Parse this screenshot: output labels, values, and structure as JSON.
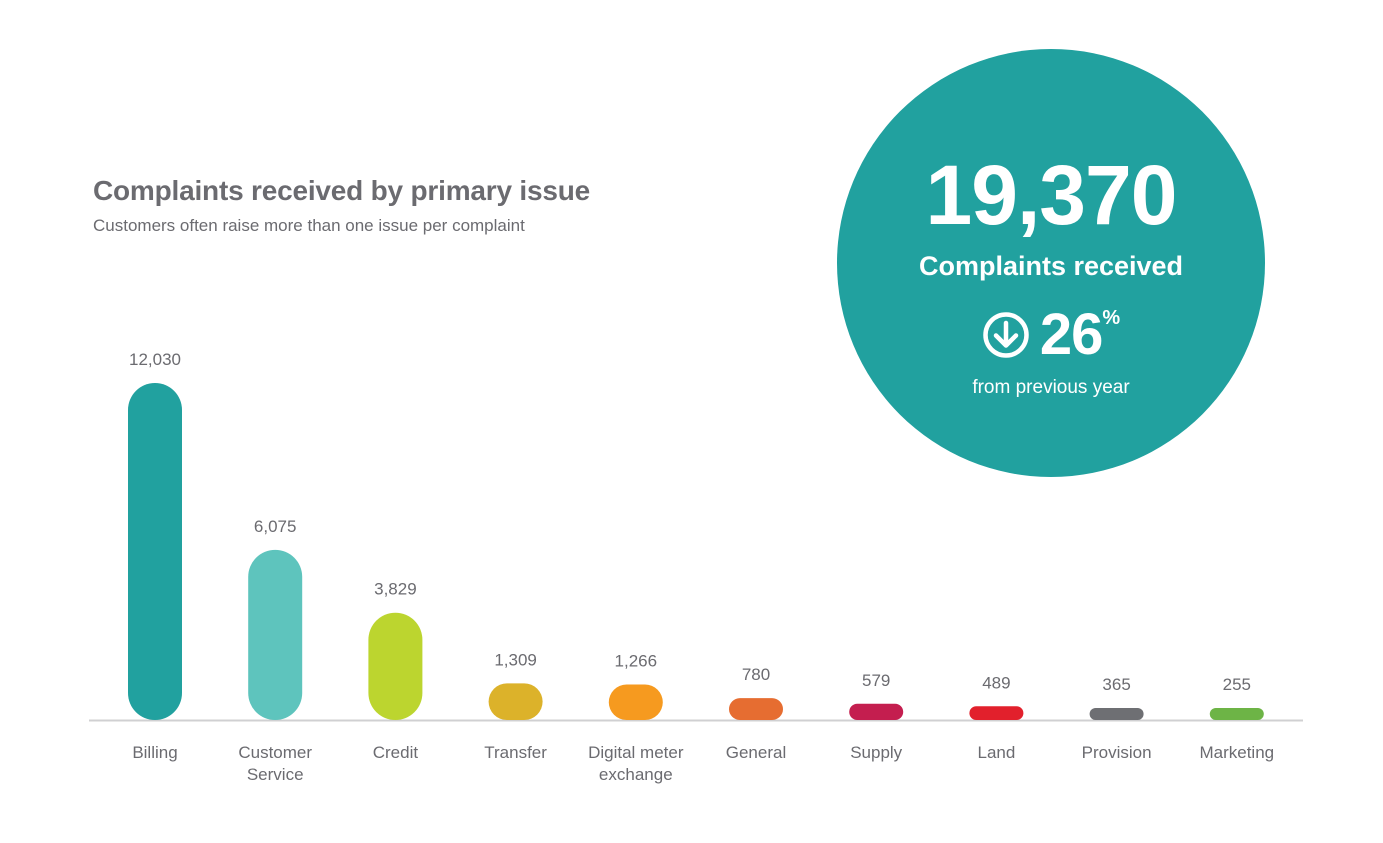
{
  "summary": {
    "total": "19,370",
    "total_label": "Complaints received",
    "change_value": "26",
    "change_unit": "%",
    "change_caption": "from previous year",
    "accent_color": "#21a19f",
    "direction_icon": "arrow-down-circle-icon"
  },
  "chart_data": {
    "type": "bar",
    "title": "Complaints received by primary issue",
    "subtitle": "Customers often raise more than one issue per complaint",
    "categories": [
      [
        "Billing"
      ],
      [
        "Customer",
        "Service"
      ],
      [
        "Credit"
      ],
      [
        "Transfer"
      ],
      [
        "Digital meter",
        "exchange"
      ],
      [
        "General"
      ],
      [
        "Supply"
      ],
      [
        "Land"
      ],
      [
        "Provision"
      ],
      [
        "Marketing"
      ]
    ],
    "values": [
      12030,
      6075,
      3829,
      1309,
      1266,
      780,
      579,
      489,
      365,
      255
    ],
    "value_labels": [
      "12,030",
      "6,075",
      "3,829",
      "1,309",
      "1,266",
      "780",
      "579",
      "489",
      "365",
      "255"
    ],
    "colors": [
      "#21a19f",
      "#5ec4bd",
      "#bcd52f",
      "#dcb22a",
      "#f69a1f",
      "#e66d31",
      "#c41e4f",
      "#e2202c",
      "#6e6f73",
      "#6db446"
    ],
    "ylim": [
      0,
      12030
    ],
    "grid": false,
    "legend": "none"
  }
}
